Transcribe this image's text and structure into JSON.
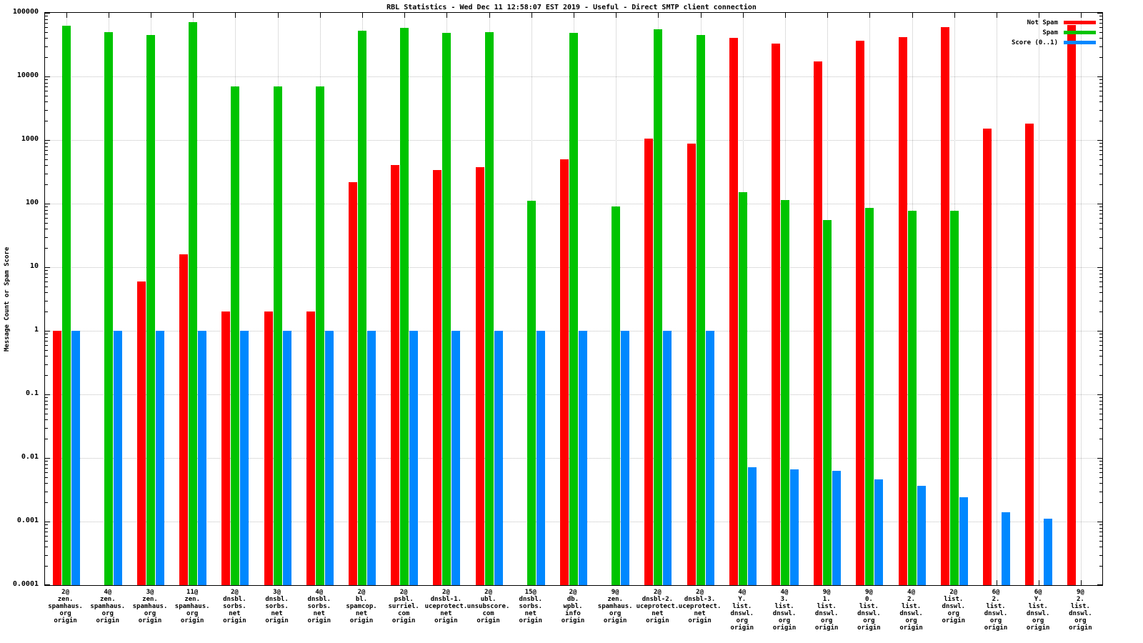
{
  "title": "RBL Statistics - Wed Dec 11 12:58:07 EST 2019 - Useful - Direct SMTP client connection",
  "ylabel": "Message Count or Spam Score",
  "legend": [
    {
      "label": "Not Spam",
      "color": "#ff0000"
    },
    {
      "label": "Spam",
      "color": "#00c400"
    },
    {
      "label": "Score (0..1)",
      "color": "#0088ff"
    }
  ],
  "chart_data": {
    "type": "bar",
    "title": "RBL Statistics - Wed Dec 11 12:58:07 EST 2019 - Useful - Direct SMTP client connection",
    "xlabel": "",
    "ylabel": "Message Count or Spam Score",
    "y_scale": "log",
    "ylim": [
      0.0001,
      100000
    ],
    "grid": true,
    "legend_position": "top-right",
    "yticks": [
      {
        "label": "100000",
        "value": 100000
      },
      {
        "label": "10000",
        "value": 10000
      },
      {
        "label": "1000",
        "value": 1000
      },
      {
        "label": "100",
        "value": 100
      },
      {
        "label": "10",
        "value": 10
      },
      {
        "label": "1",
        "value": 1
      },
      {
        "label": "0.1",
        "value": 0.1
      },
      {
        "label": "0.01",
        "value": 0.01
      },
      {
        "label": "0.001",
        "value": 0.001
      },
      {
        "label": "0.0001",
        "value": 0.0001
      }
    ],
    "categories": [
      "2@\nzen.\nspamhaus.\norg\norigin",
      "4@\nzen.\nspamhaus.\norg\norigin",
      "3@\nzen.\nspamhaus.\norg\norigin",
      "11@\nzen.\nspamhaus.\norg\norigin",
      "2@\ndnsbl.\nsorbs.\nnet\norigin",
      "3@\ndnsbl.\nsorbs.\nnet\norigin",
      "4@\ndnsbl.\nsorbs.\nnet\norigin",
      "2@\nbl.\nspamcop.\nnet\norigin",
      "2@\npsbl.\nsurriel.\ncom\norigin",
      "2@\ndnsbl-1.\nuceprotect.\nnet\norigin",
      "2@\nubl.\nunsubscore.\ncom\norigin",
      "15@\ndnsbl.\nsorbs.\nnet\norigin",
      "2@\ndb.\nwpbl.\ninfo\norigin",
      "9@\nzen.\nspamhaus.\norg\norigin",
      "2@\ndnsbl-2.\nuceprotect.\nnet\norigin",
      "2@\ndnsbl-3.\nuceprotect.\nnet\norigin",
      "4@\nY.\nlist.\ndnswl.\norg\norigin",
      "4@\n3.\nlist.\ndnswl.\norg\norigin",
      "9@\n1.\nlist.\ndnswl.\norg\norigin",
      "9@\n0.\nlist.\ndnswl.\norg\norigin",
      "4@\n2.\nlist.\ndnswl.\norg\norigin",
      "2@\nlist.\ndnswl.\norg\norigin",
      "6@\n2.\nlist.\ndnswl.\norg\norigin",
      "6@\nY.\nlist.\ndnswl.\norg\norigin",
      "9@\n2.\nlist.\ndnswl.\norg\norigin"
    ],
    "series": [
      {
        "name": "Not Spam",
        "color": "#ff0000",
        "values": [
          1,
          null,
          6,
          16,
          2,
          2,
          2,
          220,
          400,
          340,
          370,
          null,
          500,
          null,
          1050,
          880,
          40000,
          33000,
          17000,
          36000,
          42000,
          60000,
          1500,
          1800,
          65000
        ]
      },
      {
        "name": "Spam",
        "color": "#00c400",
        "values": [
          62000,
          50000,
          45000,
          72000,
          7000,
          7000,
          7000,
          52000,
          58000,
          48000,
          50000,
          110,
          48000,
          90,
          55000,
          45000,
          150,
          115,
          55,
          85,
          78,
          78,
          null,
          null,
          null
        ]
      },
      {
        "name": "Score (0..1)",
        "color": "#0088ff",
        "values": [
          1,
          1,
          1,
          1,
          1,
          1,
          1,
          1,
          1,
          1,
          1,
          1,
          1,
          1,
          1,
          1,
          0.0072,
          0.0066,
          0.0063,
          0.0046,
          0.0036,
          0.0024,
          0.0014,
          0.0011,
          null
        ]
      }
    ]
  }
}
